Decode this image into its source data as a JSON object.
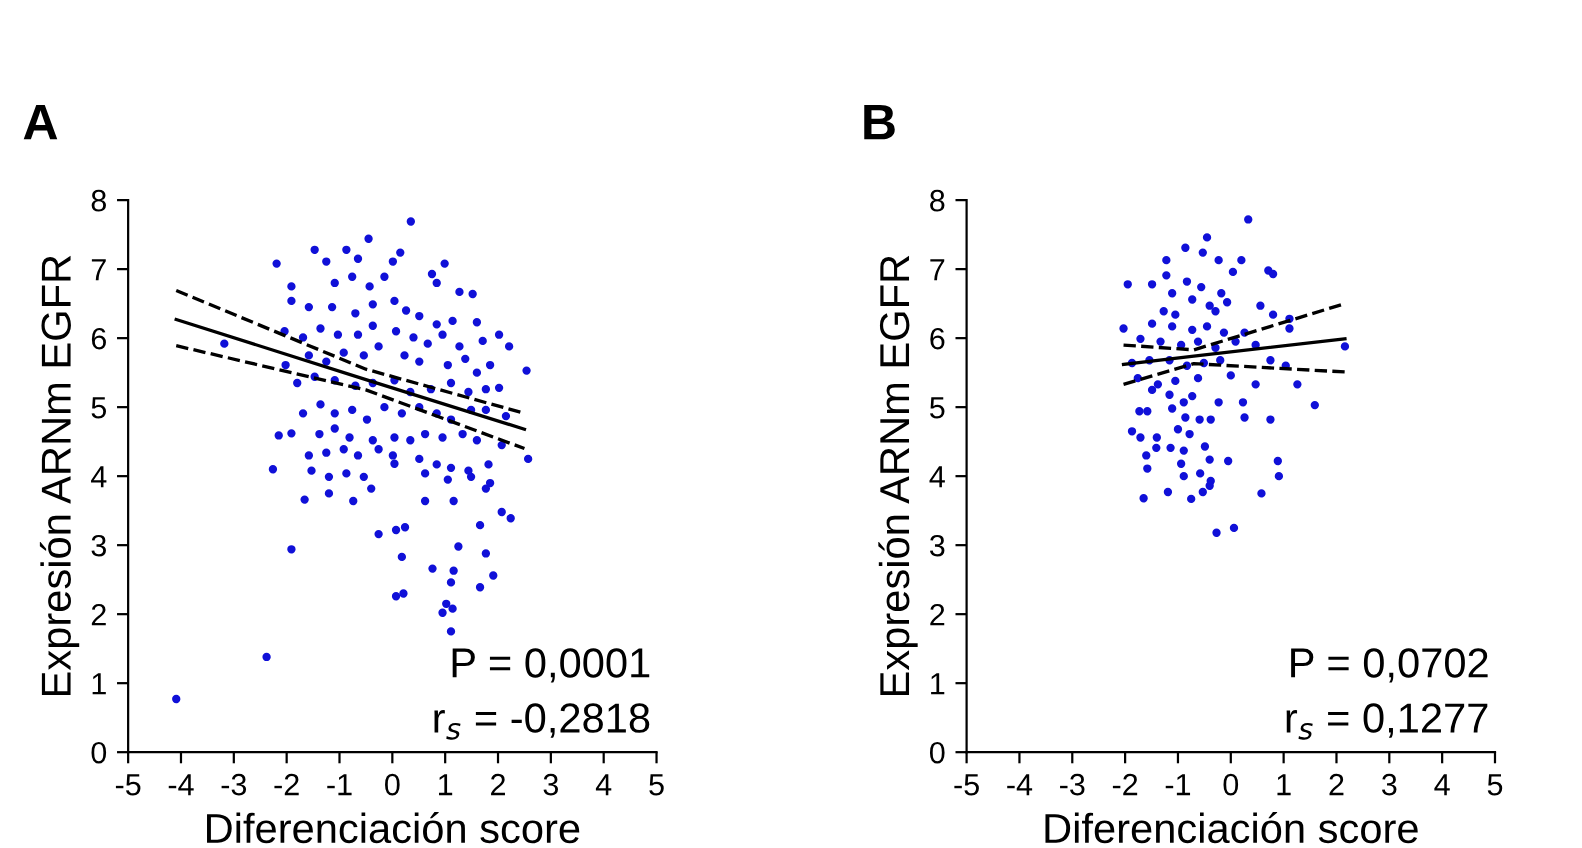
{
  "chart_data": [
    {
      "type": "scatter",
      "title": "A",
      "xlabel": "Diferenciación score",
      "ylabel": "Expresión ARNm EGFR",
      "xlim": [
        -5,
        5
      ],
      "xticks": [
        -5,
        -4,
        -3,
        -2,
        -1,
        0,
        1,
        2,
        3,
        4,
        5
      ],
      "ylim": [
        0,
        8
      ],
      "yticks": [
        0,
        1,
        2,
        3,
        4,
        5,
        6,
        7,
        8
      ],
      "annotations": [
        "P = 0,0001",
        "r$_{s}$ = -0,2818"
      ],
      "series": [
        {
          "marker": "circle",
          "color": "#1010d8",
          "x": [
            0.35,
            -1.47,
            -2.19,
            -0.87,
            -0.45,
            0.15,
            0.99,
            -1.91,
            -1.25,
            -0.65,
            -1.09,
            -0.76,
            -0.43,
            -0.15,
            0.01,
            0.75,
            0.84,
            1.27,
            1.52,
            -1.91,
            -1.58,
            -1.14,
            -0.7,
            -0.37,
            0.04,
            0.26,
            0.51,
            0.84,
            1.14,
            1.6,
            -3.18,
            -2.04,
            -1.69,
            -1.36,
            -1.03,
            -0.65,
            -0.37,
            0.07,
            0.4,
            0.67,
            0.95,
            1.27,
            1.71,
            2.02,
            2.21,
            -2.02,
            -1.58,
            -1.25,
            -0.92,
            -0.54,
            -0.26,
            0.23,
            0.51,
            1.05,
            1.38,
            1.6,
            1.85,
            2.54,
            -1.8,
            -1.47,
            -1.09,
            -0.7,
            -0.37,
            0.04,
            0.34,
            0.73,
            1.11,
            1.44,
            1.77,
            2.02,
            -1.69,
            -1.36,
            -1.09,
            -0.76,
            -0.48,
            -0.15,
            0.18,
            0.51,
            0.84,
            1.11,
            1.49,
            1.77,
            2.15,
            -2.15,
            -1.91,
            -1.38,
            -1.09,
            -0.81,
            -0.37,
            0.04,
            0.34,
            0.62,
            0.95,
            1.33,
            1.6,
            2.07,
            2.57,
            -1.58,
            -1.25,
            -0.92,
            -0.65,
            -0.26,
            0.01,
            0.51,
            0.84,
            1.11,
            1.44,
            1.82,
            -2.26,
            -1.53,
            -1.2,
            -0.87,
            -0.54,
            0.04,
            0.62,
            1.05,
            1.49,
            1.85,
            -1.66,
            -1.2,
            -0.74,
            -0.4,
            0.62,
            1.16,
            1.77,
            2.07,
            2.24,
            -0.26,
            0.07,
            0.24,
            1.66,
            -1.91,
            0.18,
            1.25,
            1.77,
            0.76,
            1.16,
            1.91,
            1.11,
            1.66,
            0.07,
            0.21,
            1.02,
            1.14,
            0.95,
            1.11,
            -2.38,
            -4.09
          ],
          "values": [
            7.69,
            7.28,
            7.08,
            7.28,
            7.44,
            7.24,
            7.08,
            6.75,
            7.11,
            7.15,
            6.8,
            6.89,
            6.75,
            6.89,
            7.11,
            6.93,
            6.8,
            6.67,
            6.64,
            6.54,
            6.45,
            6.45,
            6.36,
            6.49,
            6.54,
            6.4,
            6.32,
            6.2,
            6.25,
            6.23,
            5.92,
            6.1,
            6.01,
            6.14,
            6.05,
            6.05,
            6.18,
            6.1,
            6.01,
            5.92,
            6.05,
            5.88,
            5.96,
            6.05,
            5.88,
            5.61,
            5.75,
            5.66,
            5.79,
            5.75,
            5.88,
            5.75,
            5.66,
            5.61,
            5.7,
            5.5,
            5.61,
            5.53,
            5.35,
            5.44,
            5.39,
            5.31,
            5.35,
            5.39,
            5.22,
            5.26,
            5.35,
            5.22,
            5.26,
            5.28,
            4.91,
            5.04,
            4.91,
            4.96,
            4.82,
            5.0,
            4.91,
            5.0,
            4.91,
            4.82,
            4.96,
            4.96,
            4.87,
            4.59,
            4.62,
            4.61,
            4.69,
            4.56,
            4.52,
            4.56,
            4.52,
            4.61,
            4.56,
            4.61,
            4.52,
            4.45,
            4.25,
            4.3,
            4.34,
            4.39,
            4.3,
            4.39,
            4.3,
            4.25,
            4.17,
            4.12,
            4.08,
            4.17,
            4.1,
            4.08,
            3.99,
            4.04,
            3.99,
            4.18,
            4.04,
            3.95,
            3.99,
            3.9,
            3.66,
            3.75,
            3.64,
            3.82,
            3.64,
            3.64,
            3.82,
            3.48,
            3.39,
            3.16,
            3.22,
            3.26,
            3.29,
            2.94,
            2.83,
            2.98,
            2.88,
            2.66,
            2.63,
            2.56,
            2.46,
            2.39,
            2.26,
            2.3,
            2.15,
            2.08,
            2.02,
            1.75,
            1.38,
            0.77
          ]
        },
        {
          "type": "line",
          "marker": "none",
          "color": "#000000",
          "line_style": "solid",
          "x": [
            -4.09,
            -0.5,
            2.5
          ],
          "values": [
            6.27,
            5.4,
            4.68
          ]
        },
        {
          "type": "line",
          "marker": "none",
          "color": "#000000",
          "line_style": "dashed",
          "x": [
            -4.09,
            -0.5,
            2.5
          ],
          "values": [
            6.69,
            5.55,
            4.91
          ]
        },
        {
          "type": "line",
          "marker": "none",
          "color": "#000000",
          "line_style": "dashed",
          "x": [
            -4.09,
            -0.5,
            2.5
          ],
          "values": [
            5.89,
            5.25,
            4.4
          ]
        }
      ]
    },
    {
      "type": "scatter",
      "title": "B",
      "xlabel": "Diferenciación score",
      "ylabel": "Expresión ARNm EGFR",
      "xlim": [
        -5,
        5
      ],
      "xticks": [
        -5,
        -4,
        -3,
        -2,
        -1,
        0,
        1,
        2,
        3,
        4,
        5
      ],
      "ylim": [
        0,
        8
      ],
      "yticks": [
        0,
        1,
        2,
        3,
        4,
        5,
        6,
        7,
        8
      ],
      "annotations": [
        "P = 0,0702",
        "r$_{s}$ = 0,1277"
      ],
      "series": [
        {
          "marker": "circle",
          "color": "#1010d8",
          "x": [
            0.33,
            -0.45,
            -0.86,
            -0.53,
            -1.22,
            -0.23,
            0.2,
            -1.95,
            -1.49,
            -1.22,
            -0.83,
            -0.56,
            -0.18,
            0.04,
            0.71,
            0.8,
            -1.11,
            -0.73,
            -0.4,
            -0.07,
            0.56,
            -0.29,
            -1.05,
            -1.27,
            -2.03,
            -1.49,
            -1.11,
            -0.73,
            -0.45,
            -0.13,
            0.26,
            0.8,
            1.11,
            1.11,
            2.16,
            -1.71,
            -1.33,
            -0.94,
            -0.62,
            -0.29,
            0.09,
            0.47,
            -1.87,
            -1.54,
            -1.16,
            -0.83,
            -0.51,
            -0.2,
            0.75,
            1.04,
            -1.76,
            -1.38,
            -1.05,
            -0.62,
            0.0,
            0.47,
            1.26,
            -1.49,
            -1.16,
            -0.89,
            -0.73,
            -0.23,
            0.23,
            1.59,
            -1.73,
            -1.58,
            -1.11,
            -0.86,
            -0.59,
            -0.38,
            0.26,
            0.75,
            -1.87,
            -1.71,
            -1.4,
            -1.0,
            -0.78,
            -1.41,
            -1.14,
            -0.89,
            -0.49,
            -1.6,
            -1.58,
            -0.94,
            -0.4,
            -0.05,
            0.89,
            -0.89,
            -0.58,
            0.91,
            -0.38,
            -0.4,
            -0.53,
            -1.19,
            -1.65,
            -0.75,
            0.58,
            -0.27,
            0.06
          ],
          "values": [
            7.72,
            7.46,
            7.31,
            7.24,
            7.13,
            7.13,
            7.13,
            6.78,
            6.78,
            6.91,
            6.82,
            6.74,
            6.65,
            6.96,
            6.98,
            6.93,
            6.65,
            6.56,
            6.47,
            6.52,
            6.47,
            6.39,
            6.34,
            6.39,
            6.14,
            6.21,
            6.17,
            6.12,
            6.17,
            6.08,
            6.08,
            6.34,
            6.28,
            6.14,
            5.88,
            5.99,
            5.95,
            5.9,
            5.95,
            5.86,
            5.95,
            5.9,
            5.64,
            5.68,
            5.68,
            5.6,
            5.64,
            5.68,
            5.68,
            5.6,
            5.42,
            5.33,
            5.38,
            5.42,
            5.46,
            5.33,
            5.33,
            5.25,
            5.18,
            5.07,
            5.16,
            5.07,
            5.07,
            5.03,
            4.94,
            4.94,
            4.98,
            4.85,
            4.82,
            4.82,
            4.85,
            4.82,
            4.65,
            4.56,
            4.56,
            4.68,
            4.61,
            4.41,
            4.41,
            4.37,
            4.43,
            4.3,
            4.11,
            4.18,
            4.24,
            4.22,
            4.22,
            4.0,
            4.04,
            4.0,
            3.93,
            3.86,
            3.77,
            3.77,
            3.68,
            3.67,
            3.75,
            3.18,
            3.25
          ]
        },
        {
          "type": "line",
          "marker": "none",
          "color": "#000000",
          "line_style": "solid",
          "x": [
            -2.03,
            -0.7,
            2.16
          ],
          "values": [
            5.62,
            5.74,
            5.99
          ]
        },
        {
          "type": "line",
          "marker": "none",
          "color": "#000000",
          "line_style": "dashed",
          "x": [
            -2.03,
            -0.7,
            2.16
          ],
          "values": [
            5.9,
            5.83,
            6.5
          ]
        },
        {
          "type": "line",
          "marker": "none",
          "color": "#000000",
          "line_style": "dashed",
          "x": [
            -2.03,
            -0.7,
            2.16
          ],
          "values": [
            5.33,
            5.63,
            5.51
          ]
        }
      ]
    }
  ]
}
